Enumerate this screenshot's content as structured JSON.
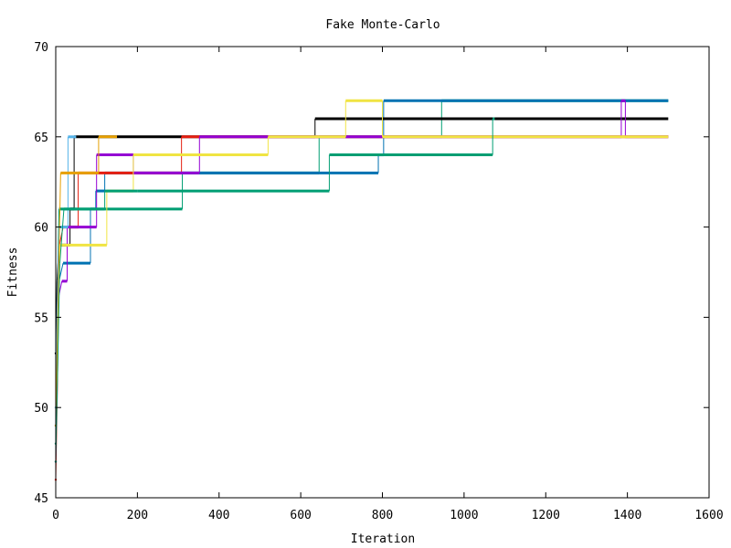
{
  "chart_data": {
    "type": "line",
    "title": "Fake Monte-Carlo",
    "xlabel": "Iteration",
    "ylabel": "Fitness",
    "xlim": [
      0,
      1600
    ],
    "ylim": [
      45,
      70
    ],
    "xticks": [
      0,
      200,
      400,
      600,
      800,
      1000,
      1200,
      1400,
      1600
    ],
    "yticks": [
      45,
      50,
      55,
      60,
      65,
      70
    ],
    "grid": false,
    "legend": "none",
    "step": true,
    "series": [
      {
        "color": "#009e73",
        "points": [
          [
            0,
            48
          ],
          [
            3,
            53
          ],
          [
            6,
            59
          ],
          [
            8,
            61
          ],
          [
            310,
            61
          ],
          [
            310,
            63
          ],
          [
            645,
            63
          ],
          [
            645,
            65
          ],
          [
            945,
            65
          ],
          [
            945,
            67
          ],
          [
            1500,
            67
          ]
        ]
      },
      {
        "color": "#0072b2",
        "points": [
          [
            0,
            49
          ],
          [
            4,
            55
          ],
          [
            8,
            57
          ],
          [
            18,
            58
          ],
          [
            85,
            58
          ],
          [
            85,
            61
          ],
          [
            98,
            61
          ],
          [
            98,
            62
          ],
          [
            120,
            62
          ],
          [
            120,
            63
          ],
          [
            790,
            63
          ],
          [
            790,
            64
          ],
          [
            803,
            64
          ],
          [
            803,
            67
          ],
          [
            1500,
            67
          ]
        ]
      },
      {
        "color": "#000000",
        "points": [
          [
            0,
            53
          ],
          [
            3,
            57
          ],
          [
            8,
            59
          ],
          [
            35,
            59
          ],
          [
            35,
            61
          ],
          [
            45,
            61
          ],
          [
            45,
            65
          ],
          [
            635,
            65
          ],
          [
            635,
            66
          ],
          [
            1500,
            66
          ]
        ]
      },
      {
        "color": "#e51e10",
        "points": [
          [
            0,
            46
          ],
          [
            4,
            51
          ],
          [
            9,
            59
          ],
          [
            18,
            60
          ],
          [
            55,
            60
          ],
          [
            55,
            63
          ],
          [
            308,
            63
          ],
          [
            308,
            65
          ],
          [
            1500,
            65
          ]
        ]
      },
      {
        "color": "#9400d3",
        "points": [
          [
            0,
            47
          ],
          [
            6,
            56
          ],
          [
            15,
            57
          ],
          [
            28,
            57
          ],
          [
            28,
            60
          ],
          [
            100,
            60
          ],
          [
            100,
            64
          ],
          [
            190,
            64
          ],
          [
            190,
            63
          ],
          [
            352,
            63
          ],
          [
            352,
            65
          ],
          [
            400,
            65
          ],
          [
            400,
            65
          ],
          [
            1385,
            65
          ],
          [
            1385,
            67
          ],
          [
            1395,
            67
          ],
          [
            1395,
            65
          ],
          [
            1500,
            65
          ]
        ]
      },
      {
        "color": "#f0e442",
        "points": [
          [
            0,
            50
          ],
          [
            5,
            54
          ],
          [
            10,
            59
          ],
          [
            125,
            59
          ],
          [
            125,
            62
          ],
          [
            190,
            62
          ],
          [
            190,
            64
          ],
          [
            520,
            64
          ],
          [
            520,
            65
          ],
          [
            710,
            65
          ],
          [
            710,
            67
          ],
          [
            800,
            67
          ],
          [
            800,
            65
          ],
          [
            1500,
            65
          ]
        ]
      },
      {
        "color": "#56b4e9",
        "points": [
          [
            0,
            50
          ],
          [
            3,
            55
          ],
          [
            8,
            60
          ],
          [
            30,
            60
          ],
          [
            30,
            65
          ],
          [
            50,
            65
          ]
        ]
      },
      {
        "color": "#e69f00",
        "points": [
          [
            0,
            49
          ],
          [
            5,
            55
          ],
          [
            12,
            63
          ],
          [
            105,
            63
          ],
          [
            105,
            65
          ],
          [
            150,
            65
          ]
        ]
      },
      {
        "color": "#009e73",
        "points": [
          [
            0,
            47
          ],
          [
            10,
            58
          ],
          [
            20,
            61
          ],
          [
            120,
            61
          ],
          [
            120,
            62
          ],
          [
            200,
            62
          ],
          [
            200,
            62
          ],
          [
            670,
            62
          ],
          [
            670,
            64
          ],
          [
            1070,
            64
          ],
          [
            1070,
            66
          ],
          [
            1075,
            66
          ]
        ]
      }
    ]
  }
}
